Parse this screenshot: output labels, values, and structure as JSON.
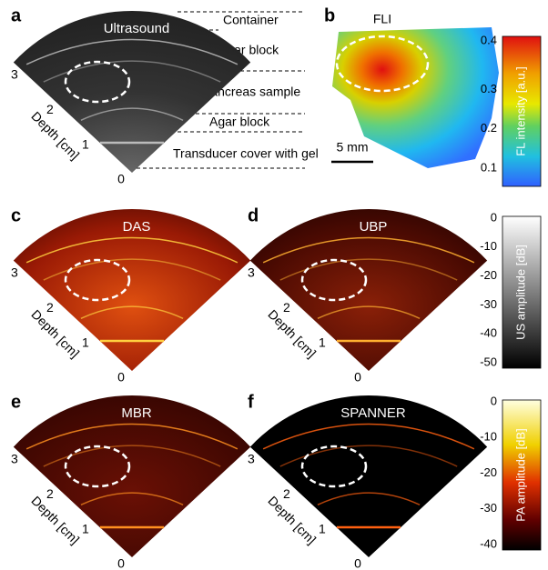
{
  "panels": [
    {
      "label": "a",
      "title": "Ultrasound",
      "depth_ticks": [
        3,
        2,
        1,
        0
      ],
      "depth_label": "Depth [cm]",
      "annotations": [
        "Container",
        "Agar block",
        "Pancreas sample",
        "Agar block",
        "Transducer cover with gel"
      ]
    },
    {
      "label": "b",
      "title": "FLI",
      "scale_bar": "5 mm"
    },
    {
      "label": "c",
      "title": "DAS",
      "depth_ticks": [
        3,
        2,
        1,
        0
      ],
      "depth_label": "Depth [cm]"
    },
    {
      "label": "d",
      "title": "UBP",
      "depth_ticks": [
        3,
        2,
        1,
        0
      ],
      "depth_label": "Depth [cm]"
    },
    {
      "label": "e",
      "title": "MBR",
      "depth_ticks": [
        3,
        2,
        1,
        0
      ],
      "depth_label": "Depth [cm]"
    },
    {
      "label": "f",
      "title": "SPANNER",
      "depth_ticks": [
        3,
        2,
        1,
        0
      ],
      "depth_label": "Depth [cm]"
    }
  ],
  "colorbars": [
    {
      "label": "FL intensity [a.u.]",
      "ticks": [
        0.4,
        0.3,
        0.2,
        0.1
      ]
    },
    {
      "label": "US amplitude [dB]",
      "ticks": [
        0,
        -10,
        -20,
        -30,
        -40,
        -50
      ]
    },
    {
      "label": "PA amplitude [dB]",
      "ticks": [
        0,
        -10,
        -20,
        -30,
        -40
      ]
    }
  ]
}
